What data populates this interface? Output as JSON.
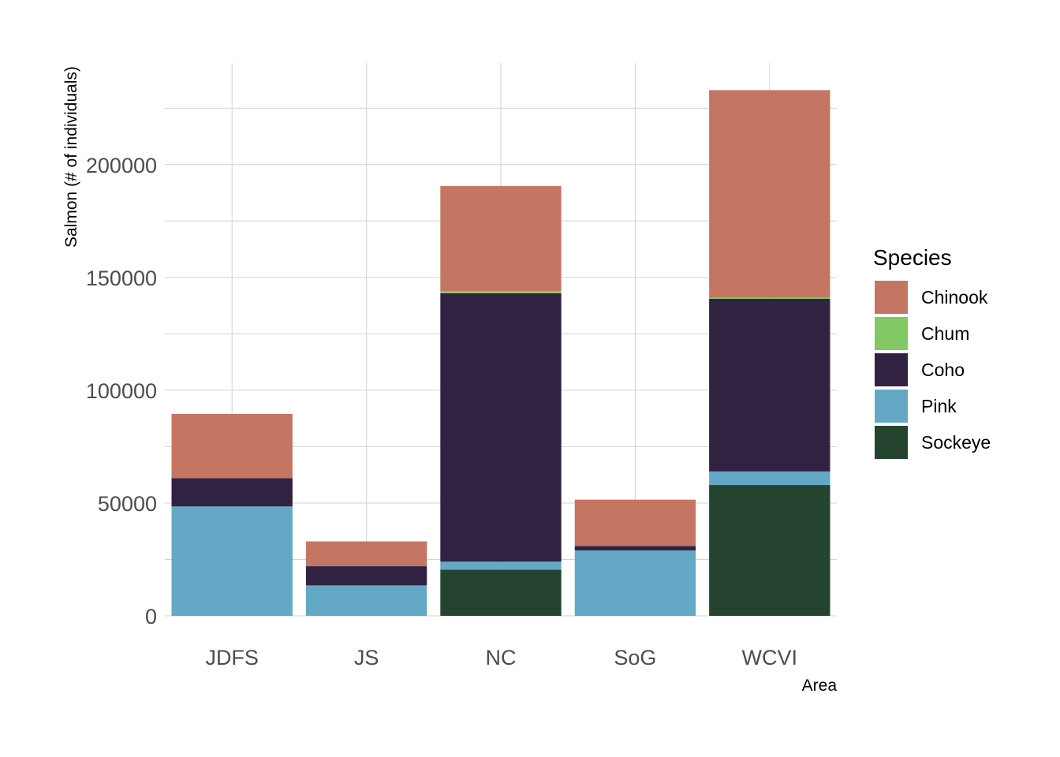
{
  "chart_data": {
    "type": "bar",
    "stacked": true,
    "categories": [
      "JDFS",
      "JS",
      "NC",
      "SoG",
      "WCVI"
    ],
    "xlabel": "Area",
    "ylabel": "Salmon (# of individuals)",
    "ylim": [
      0,
      245000
    ],
    "yticks": [
      0,
      50000,
      100000,
      150000,
      200000
    ],
    "ytick_labels": [
      "0",
      "50000",
      "100000",
      "150000",
      "200000"
    ],
    "grid": true,
    "legend": {
      "title": "Species",
      "position": "right"
    },
    "stack_order_bottom_to_top": [
      "Sockeye",
      "Pink",
      "Coho",
      "Chum",
      "Chinook"
    ],
    "series": [
      {
        "name": "Chinook",
        "color": "#c57663",
        "values": [
          28500,
          11000,
          46500,
          20500,
          92000
        ]
      },
      {
        "name": "Chum",
        "color": "#82c965",
        "values": [
          0,
          0,
          1000,
          0,
          500
        ]
      },
      {
        "name": "Coho",
        "color": "#322242",
        "values": [
          12500,
          8500,
          119000,
          2000,
          76500
        ]
      },
      {
        "name": "Pink",
        "color": "#63a9c6",
        "values": [
          48500,
          13500,
          3500,
          29000,
          6000
        ]
      },
      {
        "name": "Sockeye",
        "color": "#244430",
        "values": [
          0,
          0,
          20500,
          0,
          58000
        ]
      }
    ]
  }
}
